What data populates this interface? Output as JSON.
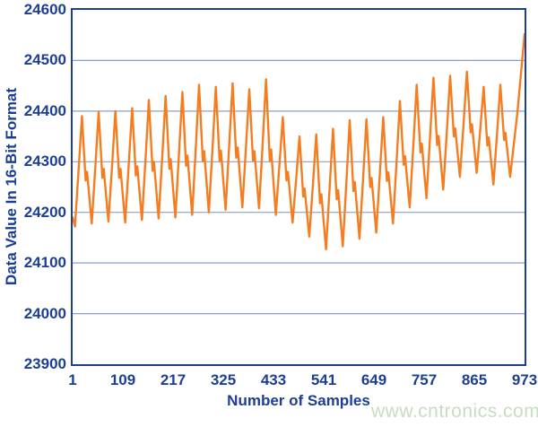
{
  "page": {
    "background": "#ffffff"
  },
  "watermark": {
    "text": "www.cntronics.com",
    "color": "#c8dcc3"
  },
  "chart_data": {
    "type": "line",
    "title": "",
    "xlabel": "Number of Samples",
    "ylabel": "Data Value In 16-Bit Format",
    "xlim": [
      1,
      973
    ],
    "ylim": [
      23900,
      24600
    ],
    "xticks": [
      1,
      109,
      217,
      325,
      433,
      541,
      649,
      757,
      865,
      973
    ],
    "yticks": [
      23900,
      24000,
      24100,
      24200,
      24300,
      24400,
      24500,
      24600
    ],
    "grid": "horizontal",
    "legend": "none",
    "colors": {
      "line": "#f57d1f",
      "axis": "#1c3e94",
      "gridline": "#8e9ec8"
    },
    "points": [
      [
        1,
        24190
      ],
      [
        6,
        24172
      ],
      [
        14,
        24285
      ],
      [
        21,
        24390
      ],
      [
        29,
        24263
      ],
      [
        32,
        24280
      ],
      [
        42,
        24178
      ],
      [
        50,
        24292
      ],
      [
        57,
        24398
      ],
      [
        65,
        24268
      ],
      [
        68,
        24286
      ],
      [
        78,
        24182
      ],
      [
        86,
        24295
      ],
      [
        93,
        24400
      ],
      [
        101,
        24268
      ],
      [
        104,
        24286
      ],
      [
        114,
        24180
      ],
      [
        122,
        24298
      ],
      [
        129,
        24406
      ],
      [
        137,
        24273
      ],
      [
        140,
        24291
      ],
      [
        150,
        24185
      ],
      [
        158,
        24308
      ],
      [
        165,
        24422
      ],
      [
        173,
        24282
      ],
      [
        176,
        24300
      ],
      [
        186,
        24188
      ],
      [
        194,
        24314
      ],
      [
        201,
        24430
      ],
      [
        209,
        24286
      ],
      [
        212,
        24305
      ],
      [
        222,
        24190
      ],
      [
        230,
        24319
      ],
      [
        237,
        24438
      ],
      [
        245,
        24292
      ],
      [
        248,
        24312
      ],
      [
        258,
        24195
      ],
      [
        266,
        24329
      ],
      [
        273,
        24452
      ],
      [
        281,
        24301
      ],
      [
        284,
        24321
      ],
      [
        294,
        24200
      ],
      [
        302,
        24329
      ],
      [
        309,
        24448
      ],
      [
        317,
        24302
      ],
      [
        320,
        24322
      ],
      [
        330,
        24205
      ],
      [
        338,
        24335
      ],
      [
        345,
        24455
      ],
      [
        353,
        24308
      ],
      [
        356,
        24328
      ],
      [
        366,
        24210
      ],
      [
        374,
        24331
      ],
      [
        381,
        24443
      ],
      [
        389,
        24302
      ],
      [
        392,
        24321
      ],
      [
        402,
        24208
      ],
      [
        410,
        24341
      ],
      [
        417,
        24463
      ],
      [
        425,
        24302
      ],
      [
        428,
        24324
      ],
      [
        438,
        24195
      ],
      [
        446,
        24295
      ],
      [
        453,
        24388
      ],
      [
        461,
        24263
      ],
      [
        464,
        24280
      ],
      [
        474,
        24180
      ],
      [
        482,
        24268
      ],
      [
        489,
        24350
      ],
      [
        497,
        24231
      ],
      [
        500,
        24247
      ],
      [
        510,
        24152
      ],
      [
        518,
        24257
      ],
      [
        525,
        24354
      ],
      [
        533,
        24218
      ],
      [
        536,
        24236
      ],
      [
        546,
        24127
      ],
      [
        554,
        24251
      ],
      [
        561,
        24365
      ],
      [
        569,
        24226
      ],
      [
        572,
        24244
      ],
      [
        582,
        24133
      ],
      [
        590,
        24262
      ],
      [
        597,
        24382
      ],
      [
        605,
        24242
      ],
      [
        608,
        24260
      ],
      [
        618,
        24148
      ],
      [
        626,
        24271
      ],
      [
        633,
        24384
      ],
      [
        641,
        24250
      ],
      [
        644,
        24268
      ],
      [
        654,
        24160
      ],
      [
        662,
        24279
      ],
      [
        669,
        24388
      ],
      [
        677,
        24262
      ],
      [
        680,
        24279
      ],
      [
        690,
        24178
      ],
      [
        698,
        24304
      ],
      [
        705,
        24420
      ],
      [
        713,
        24294
      ],
      [
        716,
        24311
      ],
      [
        726,
        24210
      ],
      [
        734,
        24336
      ],
      [
        741,
        24452
      ],
      [
        749,
        24318
      ],
      [
        752,
        24336
      ],
      [
        762,
        24228
      ],
      [
        770,
        24352
      ],
      [
        777,
        24466
      ],
      [
        785,
        24333
      ],
      [
        788,
        24351
      ],
      [
        798,
        24245
      ],
      [
        806,
        24362
      ],
      [
        813,
        24470
      ],
      [
        821,
        24350
      ],
      [
        824,
        24366
      ],
      [
        834,
        24270
      ],
      [
        842,
        24378
      ],
      [
        849,
        24478
      ],
      [
        857,
        24358
      ],
      [
        860,
        24374
      ],
      [
        870,
        24278
      ],
      [
        878,
        24366
      ],
      [
        885,
        24448
      ],
      [
        893,
        24332
      ],
      [
        896,
        24348
      ],
      [
        906,
        24255
      ],
      [
        914,
        24357
      ],
      [
        921,
        24452
      ],
      [
        929,
        24343
      ],
      [
        932,
        24357
      ],
      [
        942,
        24270
      ],
      [
        958,
        24400
      ],
      [
        973,
        24552
      ]
    ]
  }
}
